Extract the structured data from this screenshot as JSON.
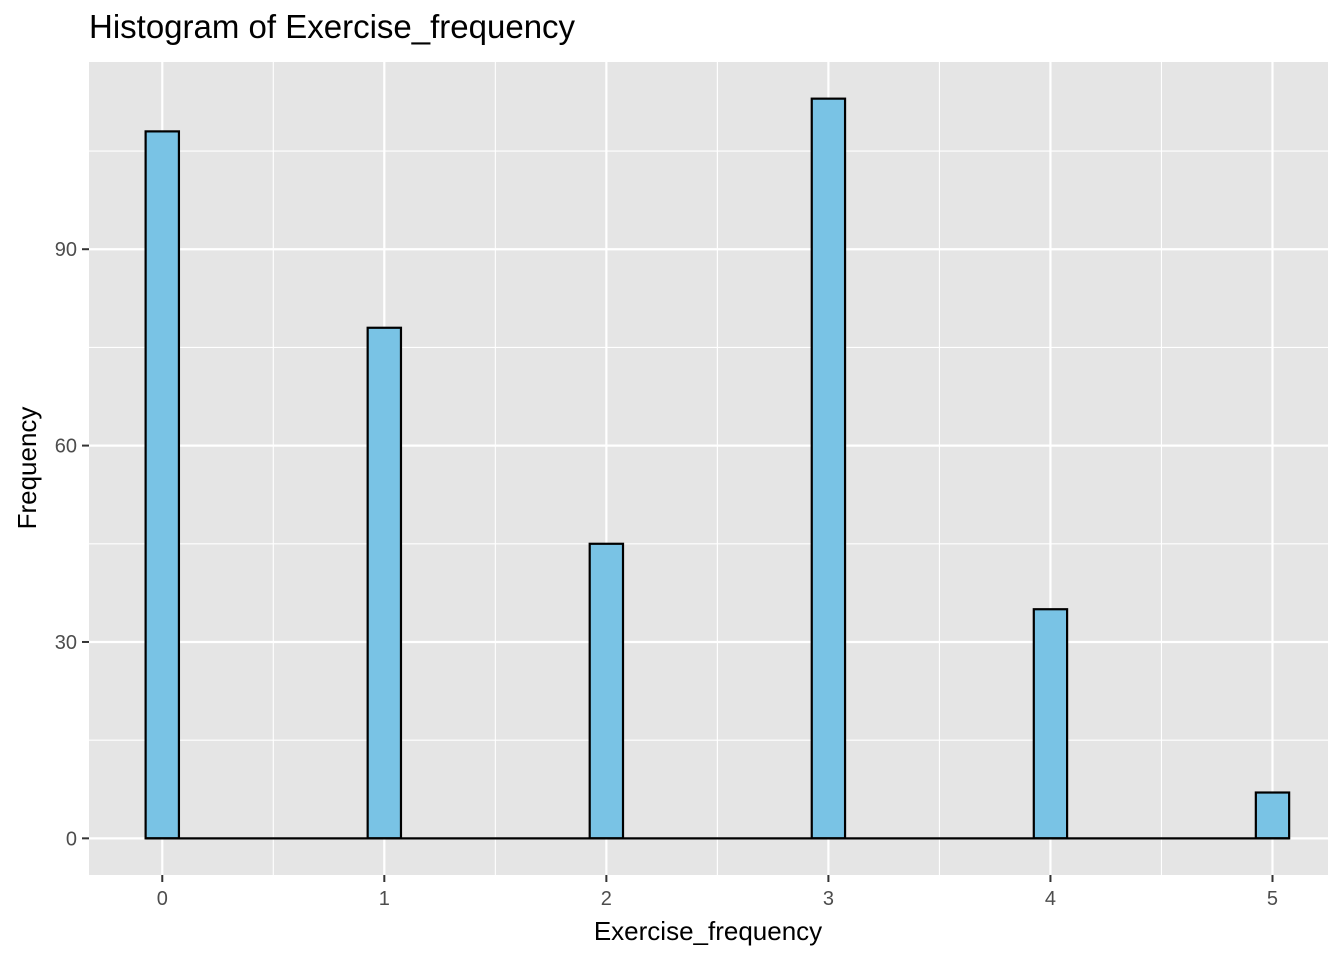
{
  "chart_data": {
    "type": "bar",
    "title": "Histogram of Exercise_frequency",
    "xlabel": "Exercise_frequency",
    "ylabel": "Frequency",
    "x": [
      0,
      1,
      2,
      3,
      4,
      5
    ],
    "values": [
      108,
      78,
      45,
      113,
      35,
      7
    ],
    "xlim": [
      -0.33,
      5.25
    ],
    "ylim": [
      -5.6,
      118.6
    ],
    "xticks": [
      0,
      1,
      2,
      3,
      4,
      5
    ],
    "yticks": [
      0,
      30,
      60,
      90
    ],
    "grid": true,
    "bar_fill": "#79c3e5",
    "bar_stroke": "#000000",
    "panel_background": "#e5e5e5",
    "grid_color": "#ffffff"
  }
}
